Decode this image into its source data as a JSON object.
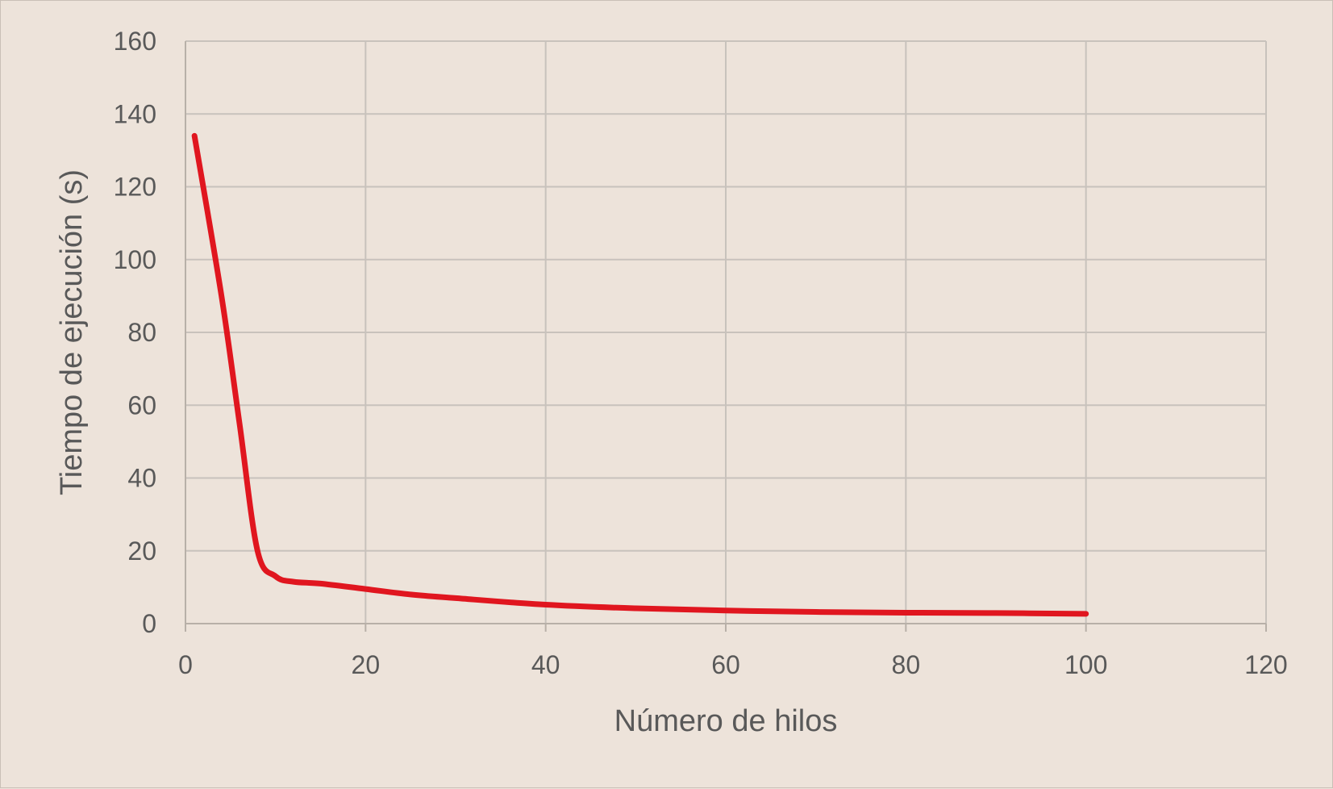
{
  "chart_data": {
    "type": "line",
    "xlabel": "Número de hilos",
    "ylabel": "Tiempo de ejecución (s)",
    "xlim": [
      0,
      120
    ],
    "ylim": [
      0,
      160
    ],
    "xticks": [
      "0",
      "20",
      "40",
      "60",
      "80",
      "100",
      "120"
    ],
    "yticks": [
      "0",
      "20",
      "40",
      "60",
      "80",
      "100",
      "120",
      "140",
      "160"
    ],
    "grid": true,
    "legend": "none",
    "series": [
      {
        "color": "#e0161f",
        "smooth": true,
        "points": [
          {
            "x": 1,
            "y": 134
          },
          {
            "x": 4,
            "y": 90
          },
          {
            "x": 6,
            "y": 55
          },
          {
            "x": 8,
            "y": 20
          },
          {
            "x": 10,
            "y": 13
          },
          {
            "x": 12,
            "y": 11.5
          },
          {
            "x": 15,
            "y": 11
          },
          {
            "x": 20,
            "y": 9.5
          },
          {
            "x": 25,
            "y": 8
          },
          {
            "x": 30,
            "y": 7
          },
          {
            "x": 40,
            "y": 5.2
          },
          {
            "x": 50,
            "y": 4.2
          },
          {
            "x": 60,
            "y": 3.6
          },
          {
            "x": 70,
            "y": 3.2
          },
          {
            "x": 80,
            "y": 3
          },
          {
            "x": 90,
            "y": 2.9
          },
          {
            "x": 100,
            "y": 2.7
          }
        ]
      }
    ]
  }
}
